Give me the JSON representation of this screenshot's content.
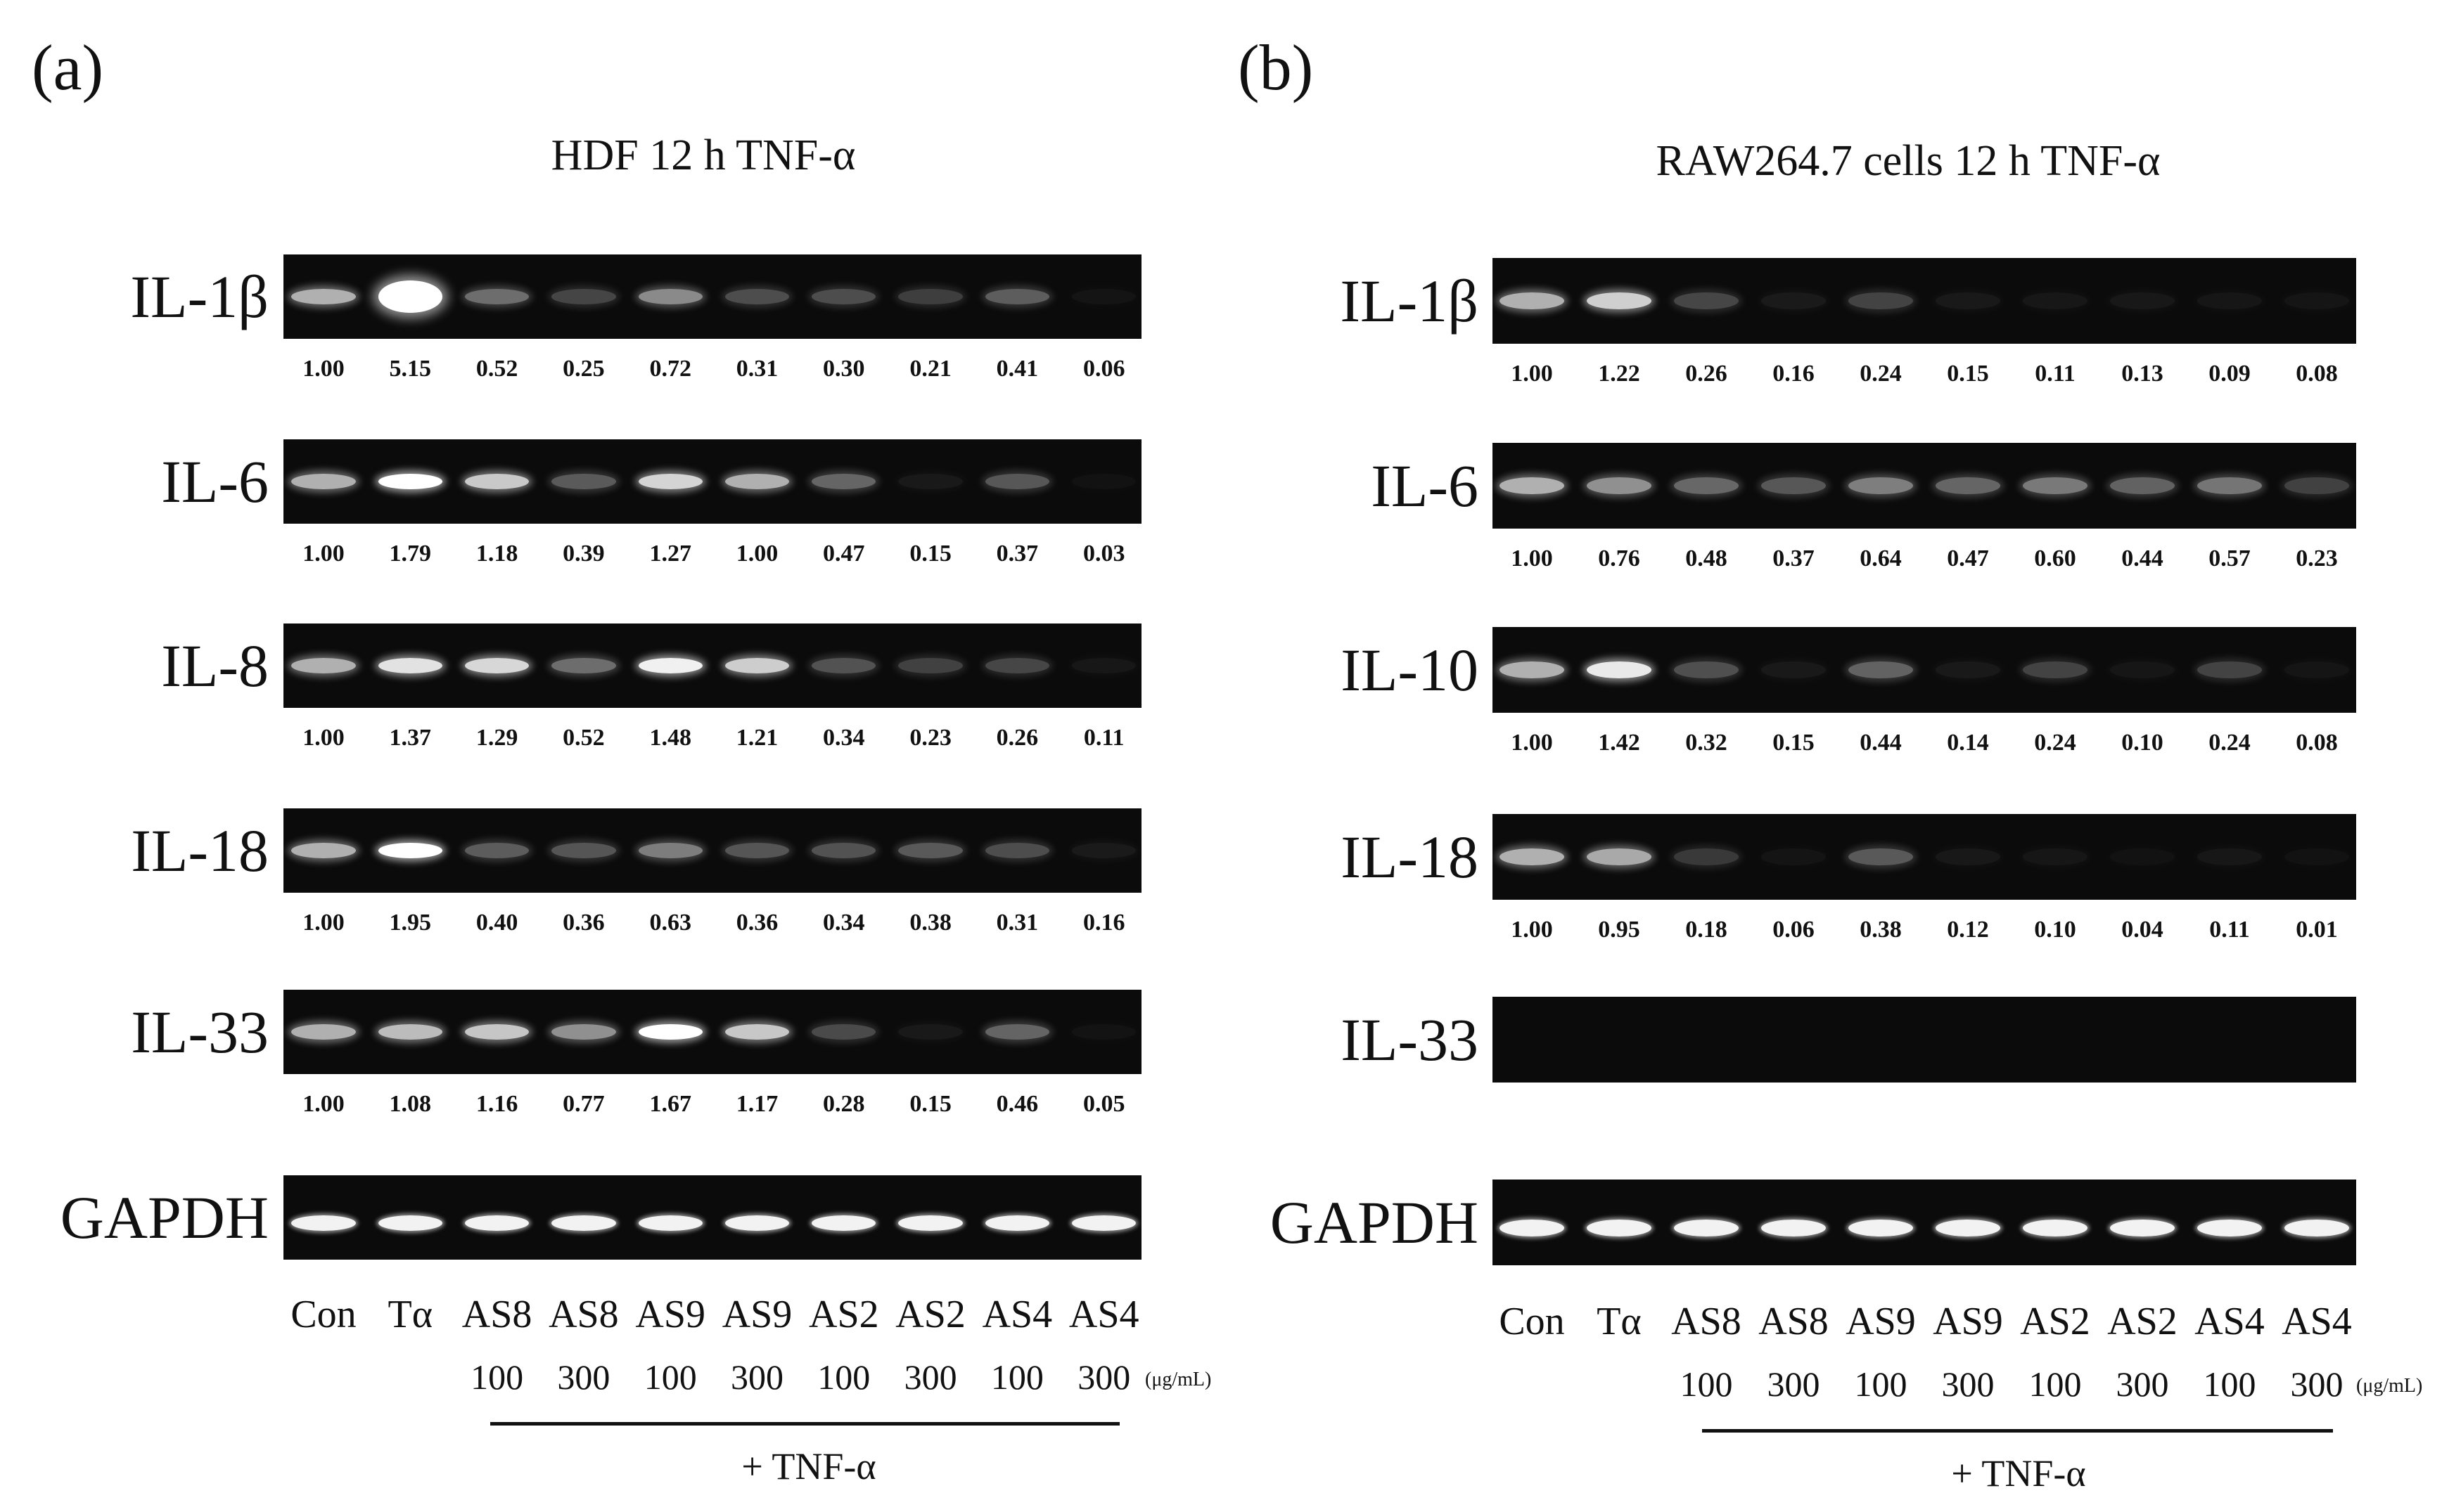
{
  "panels": [
    {
      "id": "a",
      "letter": "(a)",
      "title": "HDF 12 h TNF-α",
      "lanes": [
        "Con",
        "Tα",
        "AS8",
        "AS8",
        "AS9",
        "AS9",
        "AS2",
        "AS2",
        "AS4",
        "AS4"
      ],
      "concentrations": [
        "",
        "",
        "100",
        "300",
        "100",
        "300",
        "100",
        "300",
        "100",
        "300"
      ],
      "unit": "(μg/mL)",
      "treatment": "+ TNF-α",
      "genes": [
        {
          "name": "IL-1β",
          "values": [
            "1.00",
            "5.15",
            "0.52",
            "0.25",
            "0.72",
            "0.31",
            "0.30",
            "0.21",
            "0.41",
            "0.06"
          ]
        },
        {
          "name": "IL-6",
          "values": [
            "1.00",
            "1.79",
            "1.18",
            "0.39",
            "1.27",
            "1.00",
            "0.47",
            "0.15",
            "0.37",
            "0.03"
          ]
        },
        {
          "name": "IL-8",
          "values": [
            "1.00",
            "1.37",
            "1.29",
            "0.52",
            "1.48",
            "1.21",
            "0.34",
            "0.23",
            "0.26",
            "0.11"
          ]
        },
        {
          "name": "IL-18",
          "values": [
            "1.00",
            "1.95",
            "0.40",
            "0.36",
            "0.63",
            "0.36",
            "0.34",
            "0.38",
            "0.31",
            "0.16"
          ]
        },
        {
          "name": "IL-33",
          "values": [
            "1.00",
            "1.08",
            "1.16",
            "0.77",
            "1.67",
            "1.17",
            "0.28",
            "0.15",
            "0.46",
            "0.05"
          ]
        },
        {
          "name": "GAPDH",
          "values": []
        }
      ]
    },
    {
      "id": "b",
      "letter": "(b)",
      "title": "RAW264.7 cells 12 h TNF-α",
      "lanes": [
        "Con",
        "Tα",
        "AS8",
        "AS8",
        "AS9",
        "AS9",
        "AS2",
        "AS2",
        "AS4",
        "AS4"
      ],
      "concentrations": [
        "",
        "",
        "100",
        "300",
        "100",
        "300",
        "100",
        "300",
        "100",
        "300"
      ],
      "unit": "(μg/mL)",
      "treatment": "+ TNF-α",
      "genes": [
        {
          "name": "IL-1β",
          "values": [
            "1.00",
            "1.22",
            "0.26",
            "0.16",
            "0.24",
            "0.15",
            "0.11",
            "0.13",
            "0.09",
            "0.08"
          ]
        },
        {
          "name": "IL-6",
          "values": [
            "1.00",
            "0.76",
            "0.48",
            "0.37",
            "0.64",
            "0.47",
            "0.60",
            "0.44",
            "0.57",
            "0.23"
          ]
        },
        {
          "name": "IL-10",
          "values": [
            "1.00",
            "1.42",
            "0.32",
            "0.15",
            "0.44",
            "0.14",
            "0.24",
            "0.10",
            "0.24",
            "0.08"
          ]
        },
        {
          "name": "IL-18",
          "values": [
            "1.00",
            "0.95",
            "0.18",
            "0.06",
            "0.38",
            "0.12",
            "0.10",
            "0.04",
            "0.11",
            "0.01"
          ]
        },
        {
          "name": "IL-33",
          "values": []
        },
        {
          "name": "GAPDH",
          "values": []
        }
      ]
    }
  ]
}
